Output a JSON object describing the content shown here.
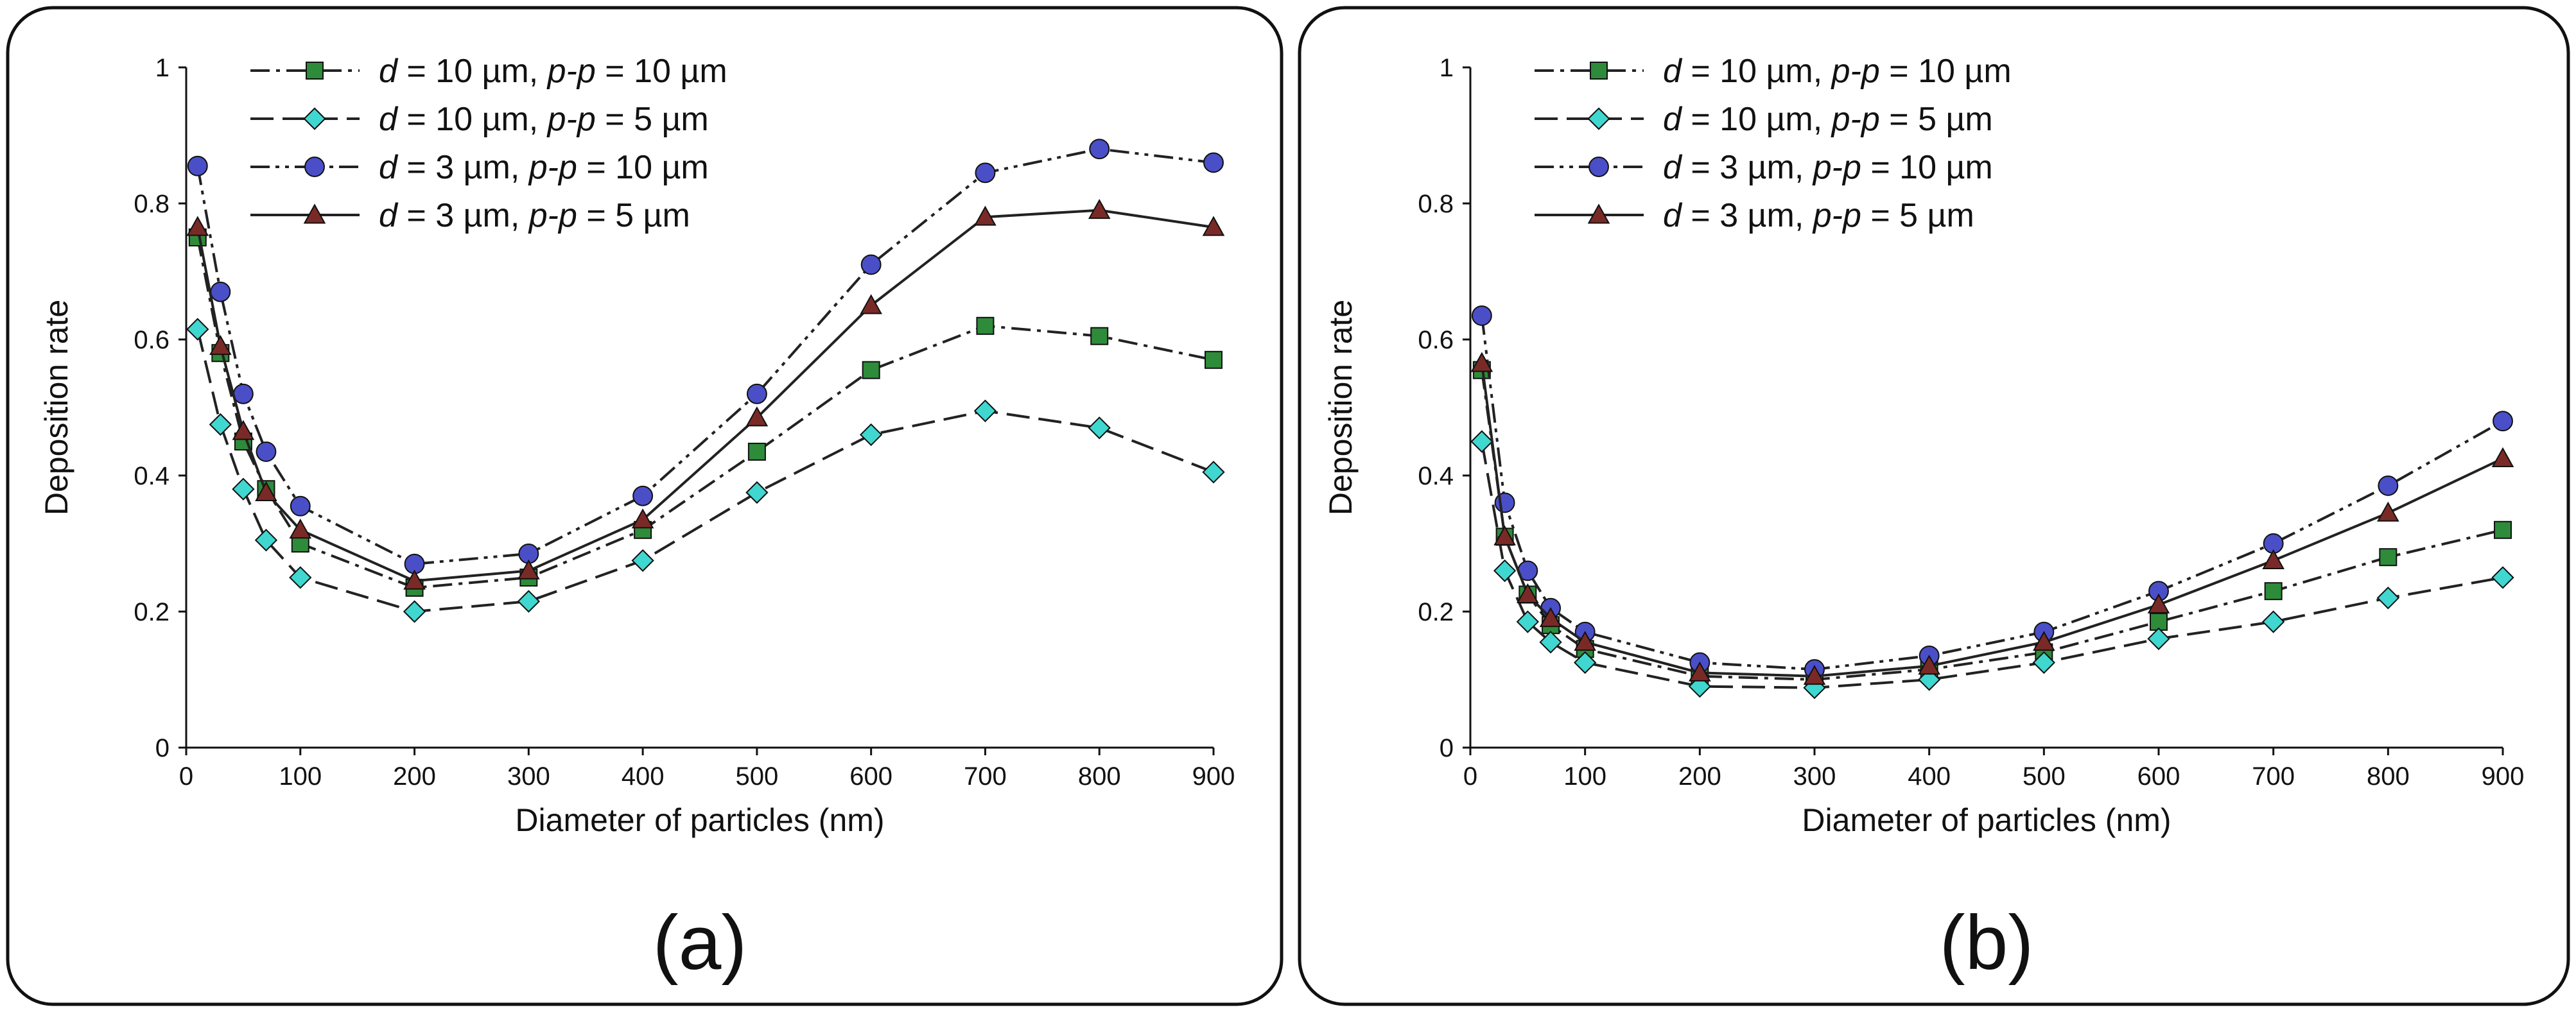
{
  "chart_data": [
    {
      "type": "line",
      "panel_label": "(a)",
      "xlabel": "Diameter of particles (nm)",
      "ylabel": "Deposition rate",
      "xlim": [
        0,
        900
      ],
      "ylim": [
        0,
        1
      ],
      "x_ticks": [
        "0",
        "100",
        "200",
        "300",
        "400",
        "500",
        "600",
        "700",
        "800",
        "900"
      ],
      "y_ticks": [
        "0",
        "0.2",
        "0.4",
        "0.6",
        "0.8",
        "1"
      ],
      "legend_position": "top-left",
      "grid": false,
      "series": [
        {
          "d_value": "10 µm",
          "pp_value": "10 µm",
          "marker": "square",
          "color": "#2e8b3a",
          "dash": "dash-dot",
          "x": [
            10,
            30,
            50,
            70,
            100,
            200,
            300,
            400,
            500,
            600,
            700,
            800,
            900
          ],
          "y": [
            0.75,
            0.58,
            0.45,
            0.38,
            0.3,
            0.235,
            0.25,
            0.32,
            0.435,
            0.555,
            0.62,
            0.605,
            0.57
          ]
        },
        {
          "d_value": "10 µm",
          "pp_value": "5 µm",
          "marker": "diamond",
          "color": "#3fd7d0",
          "dash": "long-dash",
          "x": [
            10,
            30,
            50,
            70,
            100,
            200,
            300,
            400,
            500,
            600,
            700,
            800,
            900
          ],
          "y": [
            0.615,
            0.475,
            0.38,
            0.305,
            0.25,
            0.2,
            0.215,
            0.275,
            0.375,
            0.46,
            0.495,
            0.47,
            0.405
          ]
        },
        {
          "d_value": "3 µm",
          "pp_value": "10 µm",
          "marker": "circle",
          "color": "#4a4fc8",
          "dash": "dash-dot-dot",
          "x": [
            10,
            30,
            50,
            70,
            100,
            200,
            300,
            400,
            500,
            600,
            700,
            800,
            900
          ],
          "y": [
            0.855,
            0.67,
            0.52,
            0.435,
            0.355,
            0.27,
            0.285,
            0.37,
            0.52,
            0.71,
            0.845,
            0.88,
            0.86
          ]
        },
        {
          "d_value": "3 µm",
          "pp_value": "5 µm",
          "marker": "triangle",
          "color": "#7a2a26",
          "dash": "solid",
          "x": [
            10,
            30,
            50,
            70,
            100,
            200,
            300,
            400,
            500,
            600,
            700,
            800,
            900
          ],
          "y": [
            0.765,
            0.59,
            0.465,
            0.375,
            0.32,
            0.245,
            0.26,
            0.335,
            0.485,
            0.65,
            0.78,
            0.79,
            0.765
          ]
        }
      ]
    },
    {
      "type": "line",
      "panel_label": "(b)",
      "xlabel": "Diameter of particles (nm)",
      "ylabel": "Deposition rate",
      "xlim": [
        0,
        900
      ],
      "ylim": [
        0,
        1
      ],
      "x_ticks": [
        "0",
        "100",
        "200",
        "300",
        "400",
        "500",
        "600",
        "700",
        "800",
        "900"
      ],
      "y_ticks": [
        "0",
        "0.2",
        "0.4",
        "0.6",
        "0.8",
        "1"
      ],
      "legend_position": "top-left",
      "grid": false,
      "series": [
        {
          "d_value": "10 µm",
          "pp_value": "10 µm",
          "marker": "square",
          "color": "#2e8b3a",
          "dash": "dash-dot",
          "x": [
            10,
            30,
            50,
            70,
            100,
            200,
            300,
            400,
            500,
            600,
            700,
            800,
            900
          ],
          "y": [
            0.555,
            0.31,
            0.225,
            0.18,
            0.145,
            0.105,
            0.1,
            0.115,
            0.14,
            0.185,
            0.23,
            0.28,
            0.32
          ]
        },
        {
          "d_value": "10 µm",
          "pp_value": "5 µm",
          "marker": "diamond",
          "color": "#3fd7d0",
          "dash": "long-dash",
          "x": [
            10,
            30,
            50,
            70,
            100,
            200,
            300,
            400,
            500,
            600,
            700,
            800,
            900
          ],
          "y": [
            0.45,
            0.26,
            0.185,
            0.155,
            0.125,
            0.09,
            0.088,
            0.1,
            0.125,
            0.16,
            0.185,
            0.22,
            0.25
          ]
        },
        {
          "d_value": "3 µm",
          "pp_value": "10 µm",
          "marker": "circle",
          "color": "#4a4fc8",
          "dash": "dash-dot-dot",
          "x": [
            10,
            30,
            50,
            70,
            100,
            200,
            300,
            400,
            500,
            600,
            700,
            800,
            900
          ],
          "y": [
            0.635,
            0.36,
            0.26,
            0.205,
            0.17,
            0.125,
            0.115,
            0.135,
            0.17,
            0.23,
            0.3,
            0.385,
            0.48
          ]
        },
        {
          "d_value": "3 µm",
          "pp_value": "5 µm",
          "marker": "triangle",
          "color": "#7a2a26",
          "dash": "solid",
          "x": [
            10,
            30,
            50,
            70,
            100,
            200,
            300,
            400,
            500,
            600,
            700,
            800,
            900
          ],
          "y": [
            0.565,
            0.31,
            0.225,
            0.19,
            0.155,
            0.11,
            0.105,
            0.12,
            0.155,
            0.21,
            0.275,
            0.345,
            0.425
          ]
        }
      ]
    }
  ],
  "legend_d_symbol": "d",
  "legend_pp_symbol": "p-p"
}
